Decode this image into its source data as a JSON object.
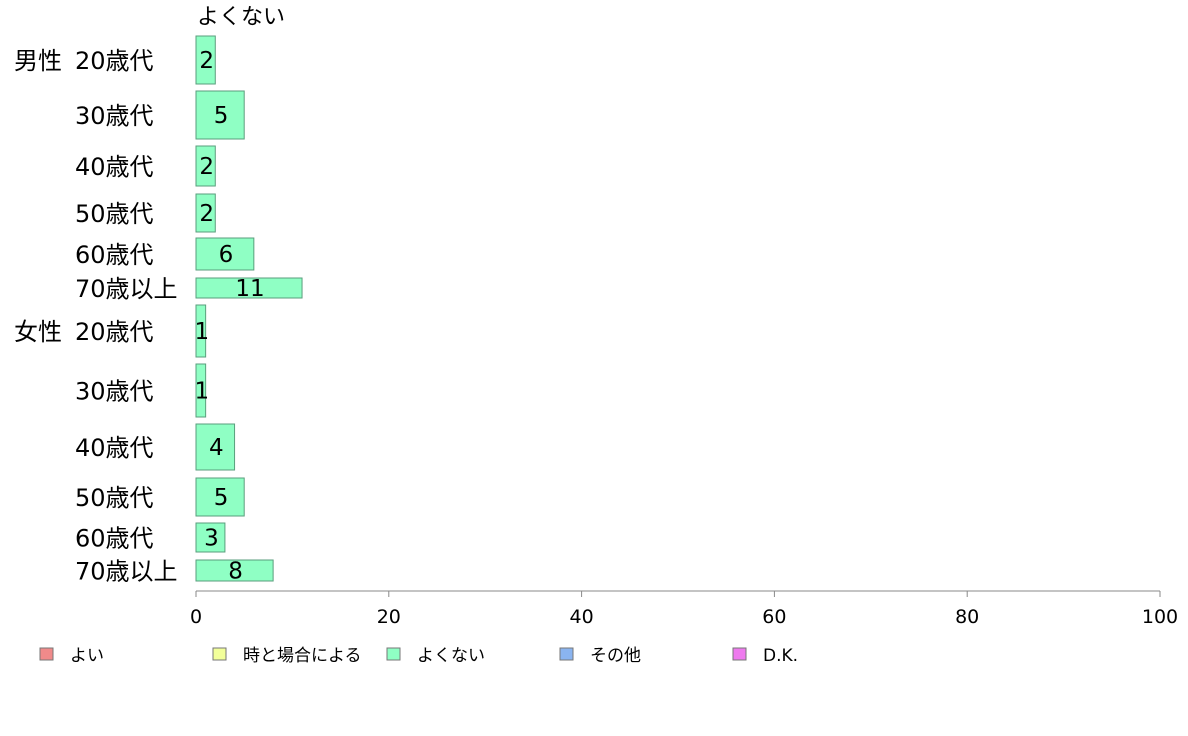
{
  "chart_data": {
    "type": "bar",
    "orientation": "horizontal",
    "panel_title": "よくない",
    "groups": [
      {
        "label": "男性",
        "categories": [
          "20歳代",
          "30歳代",
          "40歳代",
          "50歳代",
          "60歳代",
          "70歳以上"
        ],
        "values": [
          2,
          5,
          2,
          2,
          6,
          11
        ]
      },
      {
        "label": "女性",
        "categories": [
          "20歳代",
          "30歳代",
          "40歳代",
          "50歳代",
          "60歳代",
          "70歳以上"
        ],
        "values": [
          1,
          1,
          4,
          5,
          3,
          8
        ]
      }
    ],
    "xlim": [
      0,
      100
    ],
    "xticks": [
      0,
      20,
      40,
      60,
      80,
      100
    ],
    "bar_color": "#8fffc4",
    "bar_stroke": "#5a9e7c",
    "legend": {
      "placement": "bottom",
      "items": [
        {
          "label": "よい",
          "color": "#f08a8a"
        },
        {
          "label": "時と場合による",
          "color": "#f2ff9a"
        },
        {
          "label": "よくない",
          "color": "#8fffc4"
        },
        {
          "label": "その他",
          "color": "#8ab4f0"
        },
        {
          "label": "D.K.",
          "color": "#ee7aee"
        }
      ]
    }
  }
}
